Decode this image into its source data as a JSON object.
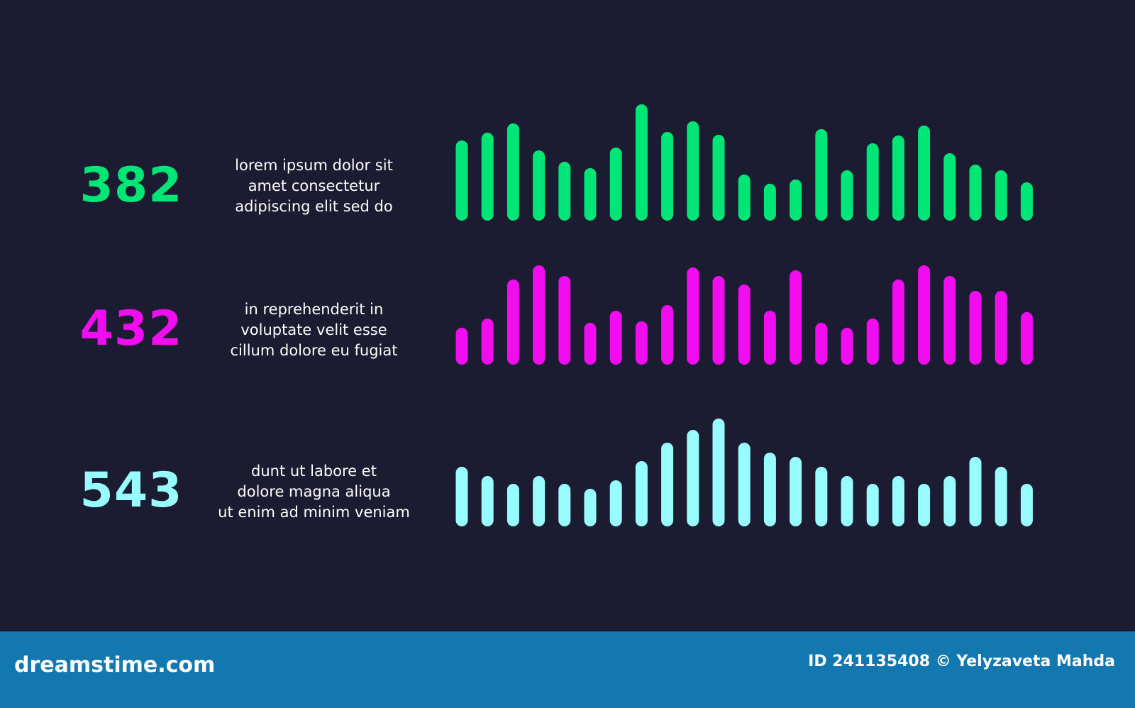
{
  "rows": [
    {
      "value": "382",
      "color": "#00e676",
      "text": [
        "lorem ipsum dolor sit",
        "amet consectetur",
        "adipiscing elit sed do"
      ]
    },
    {
      "value": "432",
      "color": "#f20cf0",
      "text": [
        "in reprehenderit in",
        "voluptate velit esse",
        "cillum dolore eu fugiat"
      ]
    },
    {
      "value": "543",
      "color": "#98fbfd",
      "text": [
        "dunt ut labore et",
        "dolore magna aliqua",
        "ut enim ad minim veniam"
      ]
    }
  ],
  "chart_data": {
    "type": "bar",
    "background": "#1b1c31",
    "series": [
      {
        "color": "#00e676",
        "values": [
          113,
          124,
          137,
          99,
          83,
          74,
          103,
          164,
          125,
          140,
          121,
          65,
          52,
          58,
          129,
          71,
          109,
          120,
          134,
          95,
          79,
          71,
          54
        ]
      },
      {
        "color": "#f20cf0",
        "values": [
          52,
          65,
          120,
          140,
          125,
          59,
          76,
          61,
          84,
          137,
          125,
          113,
          76,
          133,
          59,
          52,
          65,
          120,
          140,
          125,
          104,
          104,
          74
        ]
      },
      {
        "color": "#98fbfd",
        "values": [
          84,
          71,
          60,
          71,
          60,
          53,
          65,
          92,
          118,
          136,
          152,
          118,
          104,
          98,
          84,
          71,
          60,
          71,
          60,
          71,
          98,
          84,
          60
        ]
      }
    ]
  },
  "footer": {
    "brand": "dreamstime.com",
    "credit": "ID 241135408 © Yelyzaveta Mahda",
    "color": "#1478b0"
  }
}
